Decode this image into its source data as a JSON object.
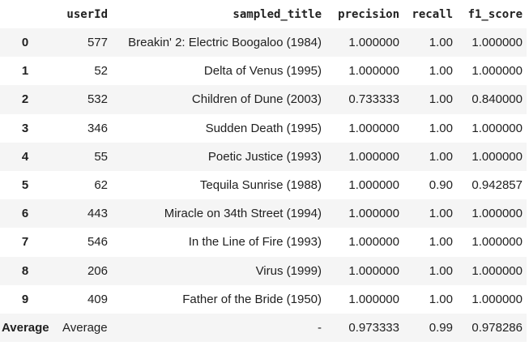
{
  "columns": {
    "index": "",
    "userId": "userId",
    "sampled_title": "sampled_title",
    "precision": "precision",
    "recall": "recall",
    "f1_score": "f1_score"
  },
  "rows": [
    {
      "index": "0",
      "userId": "577",
      "sampled_title": "Breakin' 2: Electric Boogaloo (1984)",
      "precision": "1.000000",
      "recall": "1.00",
      "f1_score": "1.000000"
    },
    {
      "index": "1",
      "userId": "52",
      "sampled_title": "Delta of Venus (1995)",
      "precision": "1.000000",
      "recall": "1.00",
      "f1_score": "1.000000"
    },
    {
      "index": "2",
      "userId": "532",
      "sampled_title": "Children of Dune (2003)",
      "precision": "0.733333",
      "recall": "1.00",
      "f1_score": "0.840000"
    },
    {
      "index": "3",
      "userId": "346",
      "sampled_title": "Sudden Death (1995)",
      "precision": "1.000000",
      "recall": "1.00",
      "f1_score": "1.000000"
    },
    {
      "index": "4",
      "userId": "55",
      "sampled_title": "Poetic Justice (1993)",
      "precision": "1.000000",
      "recall": "1.00",
      "f1_score": "1.000000"
    },
    {
      "index": "5",
      "userId": "62",
      "sampled_title": "Tequila Sunrise (1988)",
      "precision": "1.000000",
      "recall": "0.90",
      "f1_score": "0.942857"
    },
    {
      "index": "6",
      "userId": "443",
      "sampled_title": "Miracle on 34th Street (1994)",
      "precision": "1.000000",
      "recall": "1.00",
      "f1_score": "1.000000"
    },
    {
      "index": "7",
      "userId": "546",
      "sampled_title": "In the Line of Fire (1993)",
      "precision": "1.000000",
      "recall": "1.00",
      "f1_score": "1.000000"
    },
    {
      "index": "8",
      "userId": "206",
      "sampled_title": "Virus (1999)",
      "precision": "1.000000",
      "recall": "1.00",
      "f1_score": "1.000000"
    },
    {
      "index": "9",
      "userId": "409",
      "sampled_title": "Father of the Bride (1950)",
      "precision": "1.000000",
      "recall": "1.00",
      "f1_score": "1.000000"
    }
  ],
  "average_row": {
    "index": "Average",
    "userId": "Average",
    "sampled_title": "-",
    "precision": "0.973333",
    "recall": "0.99",
    "f1_score": "0.978286"
  },
  "colors": {
    "stripe": "#f5f5f5",
    "background": "#ffffff",
    "text": "#212121"
  }
}
